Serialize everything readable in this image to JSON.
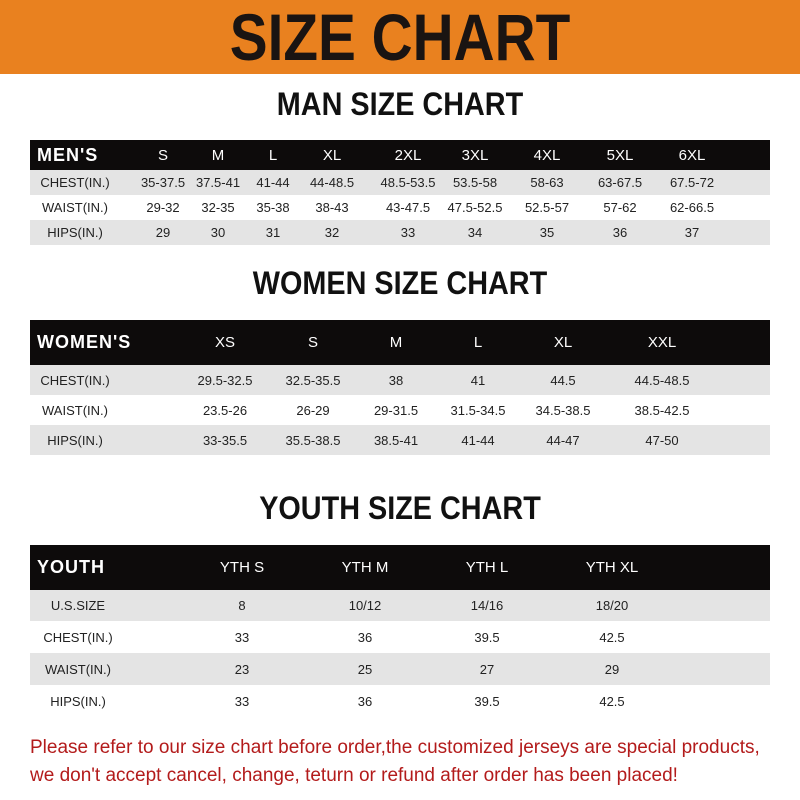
{
  "banner": {
    "title": "SIZE CHART",
    "color": "#e9811f"
  },
  "men": {
    "title": "MAN SIZE CHART",
    "header": [
      "MEN'S",
      "S",
      "M",
      "L",
      "XL",
      "2XL",
      "3XL",
      "4XL",
      "5XL",
      "6XL"
    ],
    "rows": [
      [
        "CHEST(IN.)",
        "35-37.5",
        "37.5-41",
        "41-44",
        "44-48.5",
        "48.5-53.5",
        "53.5-58",
        "58-63",
        "63-67.5",
        "67.5-72"
      ],
      [
        "WAIST(IN.)",
        "29-32",
        "32-35",
        "35-38",
        "38-43",
        "43-47.5",
        "47.5-52.5",
        "52.5-57",
        "57-62",
        "62-66.5"
      ],
      [
        "HIPS(IN.)",
        "29",
        "30",
        "31",
        "32",
        "33",
        "34",
        "35",
        "36",
        "37"
      ]
    ]
  },
  "women": {
    "title": "WOMEN SIZE CHART",
    "header": [
      "WOMEN'S",
      "XS",
      "S",
      "M",
      "L",
      "XL",
      "XXL"
    ],
    "rows": [
      [
        "CHEST(IN.)",
        "29.5-32.5",
        "32.5-35.5",
        "38",
        "41",
        "44.5",
        "44.5-48.5"
      ],
      [
        "WAIST(IN.)",
        "23.5-26",
        "26-29",
        "29-31.5",
        "31.5-34.5",
        "34.5-38.5",
        "38.5-42.5"
      ],
      [
        "HIPS(IN.)",
        "33-35.5",
        "35.5-38.5",
        "38.5-41",
        "41-44",
        "44-47",
        "47-50"
      ]
    ]
  },
  "youth": {
    "title": "YOUTH SIZE CHART",
    "header": [
      "YOUTH",
      "YTH S",
      "YTH M",
      "YTH L",
      "YTH XL"
    ],
    "rows": [
      [
        "U.S.SIZE",
        "8",
        "10/12",
        "14/16",
        "18/20"
      ],
      [
        "CHEST(IN.)",
        "33",
        "36",
        "39.5",
        "42.5"
      ],
      [
        "WAIST(IN.)",
        "23",
        "25",
        "27",
        "29"
      ],
      [
        "HIPS(IN.)",
        "33",
        "36",
        "39.5",
        "42.5"
      ]
    ]
  },
  "note": {
    "line1": "Please refer to our size chart before order,the customized jerseys are special products,",
    "line2": "we don't accept cancel, change, teturn or refund after order has been placed!",
    "color": "#b31b1b"
  }
}
